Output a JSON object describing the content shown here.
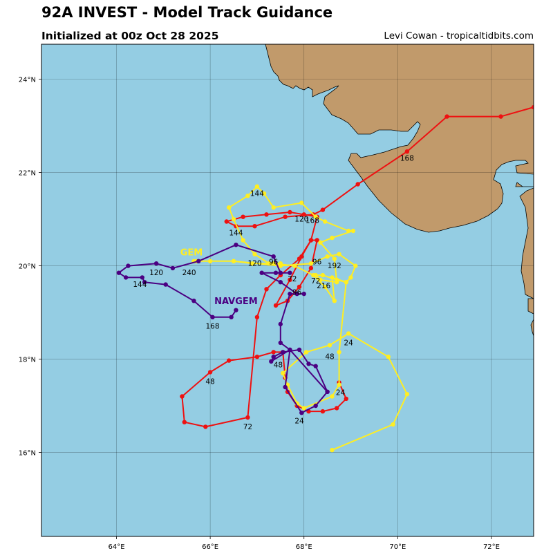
{
  "header": {
    "title": "92A INVEST - Model Track Guidance",
    "subtitle": "Initialized at 00z Oct 28 2025",
    "credit": "Levi Cowan - tropicaltidbits.com"
  },
  "map": {
    "lon_range": [
      62.4,
      72.9
    ],
    "lat_range": [
      14.2,
      24.75
    ],
    "lon_ticks": [
      64,
      66,
      68,
      70,
      72
    ],
    "lat_ticks": [
      16,
      18,
      20,
      22,
      24
    ],
    "lon_tick_labels": [
      "64°E",
      "66°E",
      "68°E",
      "70°E",
      "72°E"
    ],
    "lat_tick_labels": [
      "16°N",
      "18°N",
      "20°N",
      "22°N",
      "24°N"
    ],
    "ocean_color": "#94cde3",
    "land_color": "#c19a6b",
    "grid": true
  },
  "tracks": [
    {
      "id": "red",
      "color": "#ee1111",
      "points": [
        [
          68.75,
          17.5
        ],
        [
          68.9,
          17.15
        ],
        [
          68.7,
          16.95
        ],
        [
          68.4,
          16.88
        ],
        [
          68.1,
          16.88
        ],
        [
          67.85,
          17.0
        ],
        [
          67.65,
          17.3
        ],
        [
          67.6,
          17.6
        ],
        [
          67.55,
          18.15
        ],
        [
          67.35,
          18.15
        ],
        [
          67.0,
          18.05
        ],
        [
          66.4,
          17.97
        ],
        [
          66.0,
          17.72
        ],
        [
          65.4,
          17.2
        ],
        [
          65.45,
          16.65
        ],
        [
          65.9,
          16.55
        ],
        [
          66.8,
          16.75
        ],
        [
          67.0,
          18.9
        ],
        [
          67.2,
          19.5
        ],
        [
          67.5,
          19.8
        ],
        [
          67.9,
          20.15
        ],
        [
          68.15,
          20.55
        ],
        [
          68.28,
          20.55
        ],
        [
          68.15,
          19.95
        ],
        [
          67.9,
          19.55
        ],
        [
          67.65,
          19.25
        ],
        [
          67.4,
          19.15
        ],
        [
          67.7,
          19.7
        ],
        [
          67.95,
          20.2
        ],
        [
          68.15,
          20.55
        ],
        [
          68.28,
          21.05
        ],
        [
          68.0,
          21.1
        ],
        [
          67.7,
          21.15
        ],
        [
          67.2,
          21.1
        ],
        [
          66.7,
          21.05
        ],
        [
          66.35,
          20.95
        ],
        [
          66.55,
          20.85
        ],
        [
          66.95,
          20.85
        ],
        [
          67.6,
          21.05
        ],
        [
          68.2,
          21.1
        ],
        [
          68.4,
          21.2
        ],
        [
          69.15,
          21.75
        ],
        [
          70.2,
          22.45
        ],
        [
          71.05,
          23.2
        ],
        [
          72.2,
          23.2
        ],
        [
          72.9,
          23.4
        ]
      ]
    },
    {
      "id": "yellow",
      "color": "#ffee22",
      "points": [
        [
          68.6,
          16.05
        ],
        [
          69.9,
          16.6
        ],
        [
          70.2,
          17.25
        ],
        [
          69.8,
          18.05
        ],
        [
          68.95,
          18.55
        ],
        [
          68.55,
          18.3
        ],
        [
          68.05,
          18.15
        ],
        [
          67.55,
          17.7
        ],
        [
          67.65,
          17.45
        ],
        [
          67.85,
          17.05
        ],
        [
          68.0,
          16.95
        ],
        [
          68.6,
          17.2
        ],
        [
          68.75,
          17.45
        ],
        [
          68.75,
          18.15
        ],
        [
          68.9,
          19.65
        ],
        [
          68.6,
          19.75
        ],
        [
          68.65,
          19.25
        ],
        [
          68.45,
          19.55
        ],
        [
          68.2,
          19.8
        ],
        [
          67.8,
          20.0
        ],
        [
          67.35,
          20.05
        ],
        [
          66.9,
          20.05
        ],
        [
          66.5,
          20.1
        ],
        [
          66.0,
          20.1
        ],
        [
          65.7,
          20.1
        ],
        [
          65.65,
          20.1
        ],
        [
          66.5,
          20.1
        ],
        [
          67.5,
          20.0
        ],
        [
          68.15,
          20.05
        ],
        [
          68.5,
          20.2
        ],
        [
          68.75,
          20.25
        ],
        [
          69.1,
          20.0
        ],
        [
          69.0,
          19.75
        ],
        [
          68.9,
          19.65
        ],
        [
          68.7,
          19.7
        ],
        [
          68.4,
          19.8
        ],
        [
          68.25,
          19.8
        ],
        [
          68.35,
          19.7
        ],
        [
          68.7,
          19.65
        ],
        [
          68.65,
          20.15
        ],
        [
          68.35,
          20.5
        ],
        [
          68.6,
          20.6
        ],
        [
          69.05,
          20.75
        ],
        [
          68.95,
          20.75
        ],
        [
          68.45,
          20.95
        ],
        [
          68.25,
          21.05
        ],
        [
          67.95,
          21.35
        ],
        [
          67.35,
          21.25
        ],
        [
          67.15,
          21.55
        ],
        [
          67.0,
          21.7
        ],
        [
          66.8,
          21.5
        ],
        [
          66.4,
          21.25
        ],
        [
          66.5,
          21.0
        ],
        [
          66.7,
          20.55
        ],
        [
          66.95,
          20.25
        ],
        [
          67.25,
          20.05
        ],
        [
          67.5,
          20.05
        ]
      ]
    },
    {
      "id": "purple",
      "color": "#4b0082",
      "points": [
        [
          68.5,
          17.3
        ],
        [
          68.25,
          17.85
        ],
        [
          68.1,
          17.9
        ],
        [
          67.9,
          18.2
        ],
        [
          67.55,
          18.15
        ],
        [
          67.35,
          18.05
        ],
        [
          67.3,
          17.95
        ],
        [
          67.7,
          18.2
        ],
        [
          67.6,
          17.4
        ],
        [
          67.95,
          16.85
        ],
        [
          68.25,
          17.0
        ],
        [
          68.5,
          17.3
        ],
        [
          67.7,
          18.2
        ],
        [
          67.5,
          18.35
        ],
        [
          67.5,
          18.75
        ],
        [
          67.7,
          19.4
        ],
        [
          68.0,
          19.4
        ],
        [
          67.85,
          19.4
        ],
        [
          67.5,
          19.65
        ],
        [
          67.1,
          19.85
        ],
        [
          67.4,
          19.85
        ],
        [
          67.7,
          19.85
        ],
        [
          67.5,
          19.85
        ],
        [
          67.35,
          20.2
        ],
        [
          66.55,
          20.45
        ],
        [
          65.75,
          20.1
        ],
        [
          65.2,
          19.95
        ],
        [
          64.85,
          20.05
        ],
        [
          64.25,
          20.0
        ],
        [
          64.05,
          19.85
        ],
        [
          64.2,
          19.75
        ],
        [
          64.55,
          19.75
        ],
        [
          64.6,
          19.65
        ],
        [
          65.05,
          19.6
        ],
        [
          65.65,
          19.25
        ],
        [
          66.05,
          18.9
        ],
        [
          66.45,
          18.9
        ],
        [
          66.55,
          19.05
        ]
      ]
    }
  ],
  "point_labels": [
    {
      "text": "168",
      "lon": 70.2,
      "lat": 22.25
    },
    {
      "text": "144",
      "lon": 67.0,
      "lat": 21.5
    },
    {
      "text": "120",
      "lon": 67.95,
      "lat": 20.95
    },
    {
      "text": "168",
      "lon": 68.18,
      "lat": 20.92
    },
    {
      "text": "144",
      "lon": 66.55,
      "lat": 20.65
    },
    {
      "text": "120",
      "lon": 66.95,
      "lat": 20.0
    },
    {
      "text": "96",
      "lon": 67.35,
      "lat": 20.03
    },
    {
      "text": "96",
      "lon": 68.28,
      "lat": 20.03
    },
    {
      "text": "192",
      "lon": 68.65,
      "lat": 19.95
    },
    {
      "text": "72",
      "lon": 67.75,
      "lat": 19.67
    },
    {
      "text": "72",
      "lon": 68.25,
      "lat": 19.62
    },
    {
      "text": "216",
      "lon": 68.42,
      "lat": 19.52
    },
    {
      "text": "96",
      "lon": 67.85,
      "lat": 19.38
    },
    {
      "text": "120",
      "lon": 64.85,
      "lat": 19.8
    },
    {
      "text": "240",
      "lon": 65.55,
      "lat": 19.8
    },
    {
      "text": "144",
      "lon": 64.5,
      "lat": 19.55
    },
    {
      "text": "168",
      "lon": 66.05,
      "lat": 18.65
    },
    {
      "text": "24",
      "lon": 68.95,
      "lat": 18.3
    },
    {
      "text": "48",
      "lon": 68.55,
      "lat": 18.0
    },
    {
      "text": "48",
      "lon": 67.45,
      "lat": 17.82
    },
    {
      "text": "48",
      "lon": 66.0,
      "lat": 17.47
    },
    {
      "text": "24",
      "lon": 68.78,
      "lat": 17.23
    },
    {
      "text": "24",
      "lon": 67.9,
      "lat": 16.62
    },
    {
      "text": "72",
      "lon": 66.8,
      "lat": 16.5
    }
  ],
  "model_labels": [
    {
      "text": "GEM",
      "lon": 65.6,
      "lat": 20.22,
      "color": "#ffee22"
    },
    {
      "text": "NAVGEM",
      "lon": 66.55,
      "lat": 19.18,
      "color": "#4b0082"
    }
  ]
}
